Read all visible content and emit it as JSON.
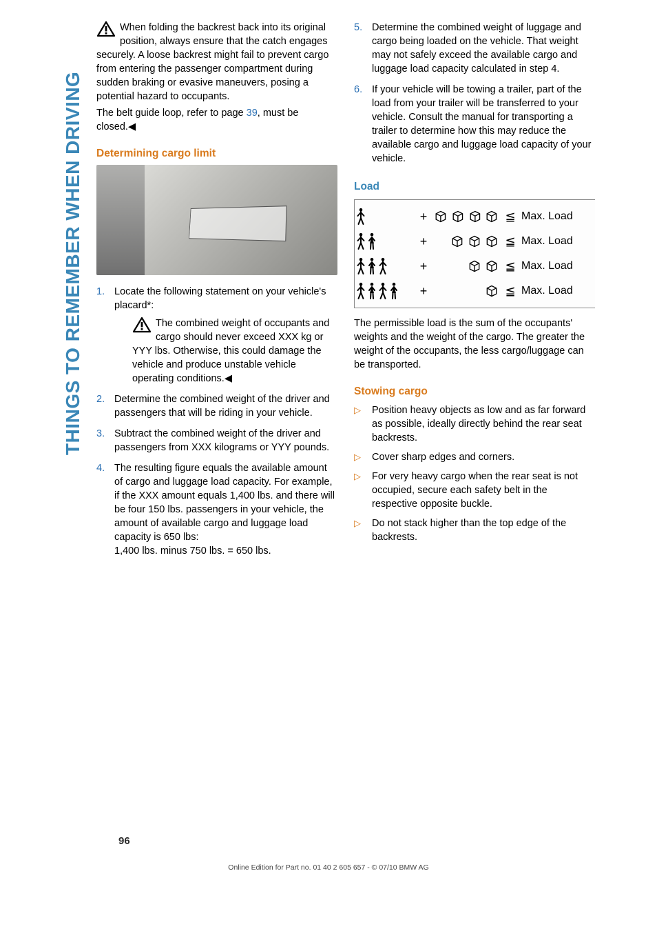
{
  "side_tab": {
    "text": "THINGS TO REMEMBER WHEN DRIVING",
    "color": "#3a87b7"
  },
  "col1": {
    "warn1_a": "When folding the backrest back into its original position, always ensure that the catch engages securely. A loose backrest might fail to prevent cargo from entering the passenger compartment during sudden braking or evasive maneuvers, posing a potential hazard to occupants.",
    "warn1_b_pre": "The belt guide loop, refer to page ",
    "warn1_b_link": "39",
    "warn1_b_post": ", must be closed.",
    "h1": "Determining cargo limit",
    "list": {
      "i1": "Locate the following statement on your vehicle's placard*:",
      "i1_warn": "The combined weight of occupants and cargo should never exceed XXX kg or YYY lbs. Otherwise, this could damage the vehicle and produce unstable vehicle operating conditions.",
      "i2": "Determine the combined weight of the driver and passengers that will be riding in your vehicle.",
      "i3": "Subtract the combined weight of the driver and passengers from XXX kilograms or YYY pounds.",
      "i4": "The resulting figure equals the available amount of cargo and luggage load capacity. For example, if the XXX amount equals 1,400 lbs. and there will be four 150 lbs. passengers in your vehicle, the amount of available cargo and luggage load capacity is 650 lbs:",
      "i4_b": "1,400 lbs. minus 750 lbs. = 650 lbs."
    }
  },
  "col2": {
    "list": {
      "i5": "Determine the combined weight of luggage and cargo being loaded on the vehicle. That weight may not safely exceed the available cargo and luggage load capacity calculated in step 4.",
      "i6": "If your vehicle will be towing a trailer, part of the load from your trailer will be transferred to your vehicle. Consult the manual for transporting a trailer to determine how this may reduce the available cargo and luggage load capacity of your vehicle."
    },
    "h_load": "Load",
    "load_rows": [
      {
        "people": 1,
        "boxes": 4,
        "label": "Max. Load"
      },
      {
        "people": 2,
        "boxes": 3,
        "label": "Max. Load"
      },
      {
        "people": 3,
        "boxes": 2,
        "label": "Max. Load"
      },
      {
        "people": 4,
        "boxes": 1,
        "label": "Max. Load"
      }
    ],
    "load_caption": "The permissible load is the sum of the occupants' weights and the weight of the cargo. The greater the weight of the occupants, the less cargo/luggage can be transported.",
    "h_stow": "Stowing cargo",
    "stow": {
      "b1": "Position heavy objects as low and as far forward as possible, ideally directly behind the rear seat backrests.",
      "b2": "Cover sharp edges and corners.",
      "b3": "For very heavy cargo when the rear seat is not occupied, secure each safety belt in the respective opposite buckle.",
      "b4": "Do not stack higher than the top edge of the backrests."
    }
  },
  "page_number": "96",
  "footer": "Online Edition for Part no. 01 40 2 605 657 - © 07/10  BMW AG",
  "colors": {
    "orange": "#d97b1e",
    "blue_heading": "#3a87b7",
    "link": "#2a6fb3",
    "text": "#000000"
  }
}
